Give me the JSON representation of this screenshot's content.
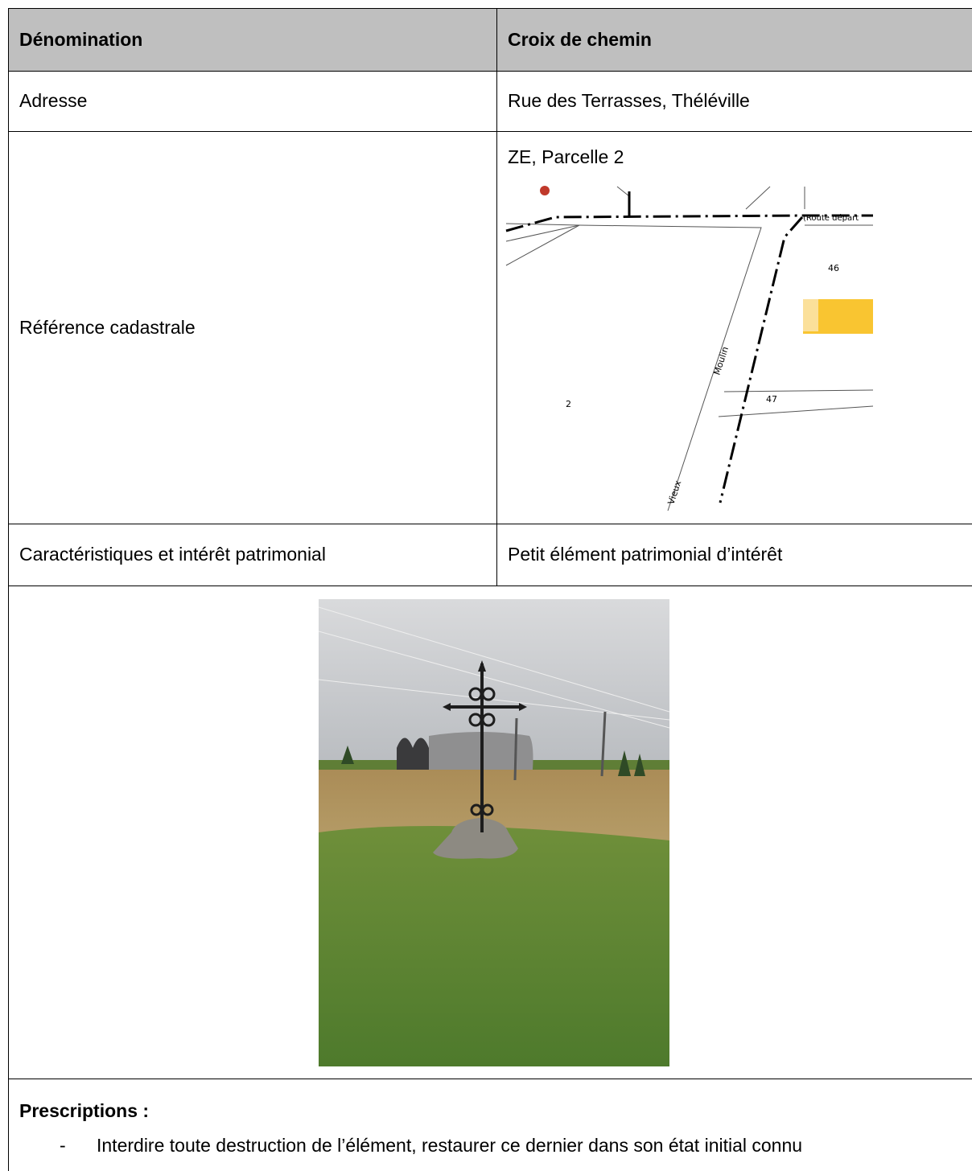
{
  "table": {
    "header": [
      "Dénomination",
      "Croix de chemin"
    ],
    "rows": [
      [
        "Adresse",
        "Rue des Terrasses, Théléville"
      ],
      [
        "Référence cadastrale",
        "ZE, Parcelle 2"
      ],
      [
        "Caractéristiques et intérêt patrimonial",
        "Petit élément patrimonial d’intérêt"
      ]
    ]
  },
  "map": {
    "labels": [
      "(Route départ",
      "46",
      "2",
      "47",
      "Moulin",
      "Vieux"
    ]
  },
  "prescriptions": {
    "title": "Prescriptions :",
    "items": [
      "Interdire toute destruction de l’élément, restaurer ce dernier dans son état initial connu"
    ]
  }
}
